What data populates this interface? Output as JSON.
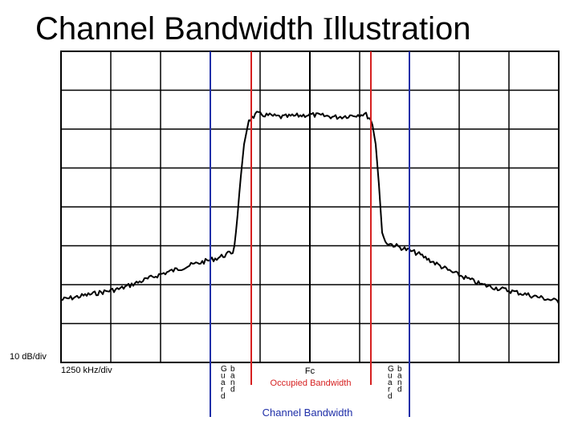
{
  "title": {
    "pre": "Channel Bandwidth ",
    "i": "I",
    "post": "llustration"
  },
  "labels": {
    "amplitude_scale": "10 dB/div",
    "frequency_scale": "1250 kHz/div",
    "center_frequency": "Fc",
    "occupied_bandwidth": "Occupied Bandwidth",
    "channel_bandwidth": "Channel Bandwidth",
    "guard_band_left": [
      "Guard",
      "band"
    ],
    "guard_band_right": [
      "Guard",
      "band"
    ]
  },
  "colors": {
    "guard_band_line": "#1f2fa8",
    "occupied_line": "#d62020",
    "center_line": "#000000",
    "occupied_text": "#d62020",
    "channel_text": "#1f2fa8",
    "trace": "#000000"
  }
}
